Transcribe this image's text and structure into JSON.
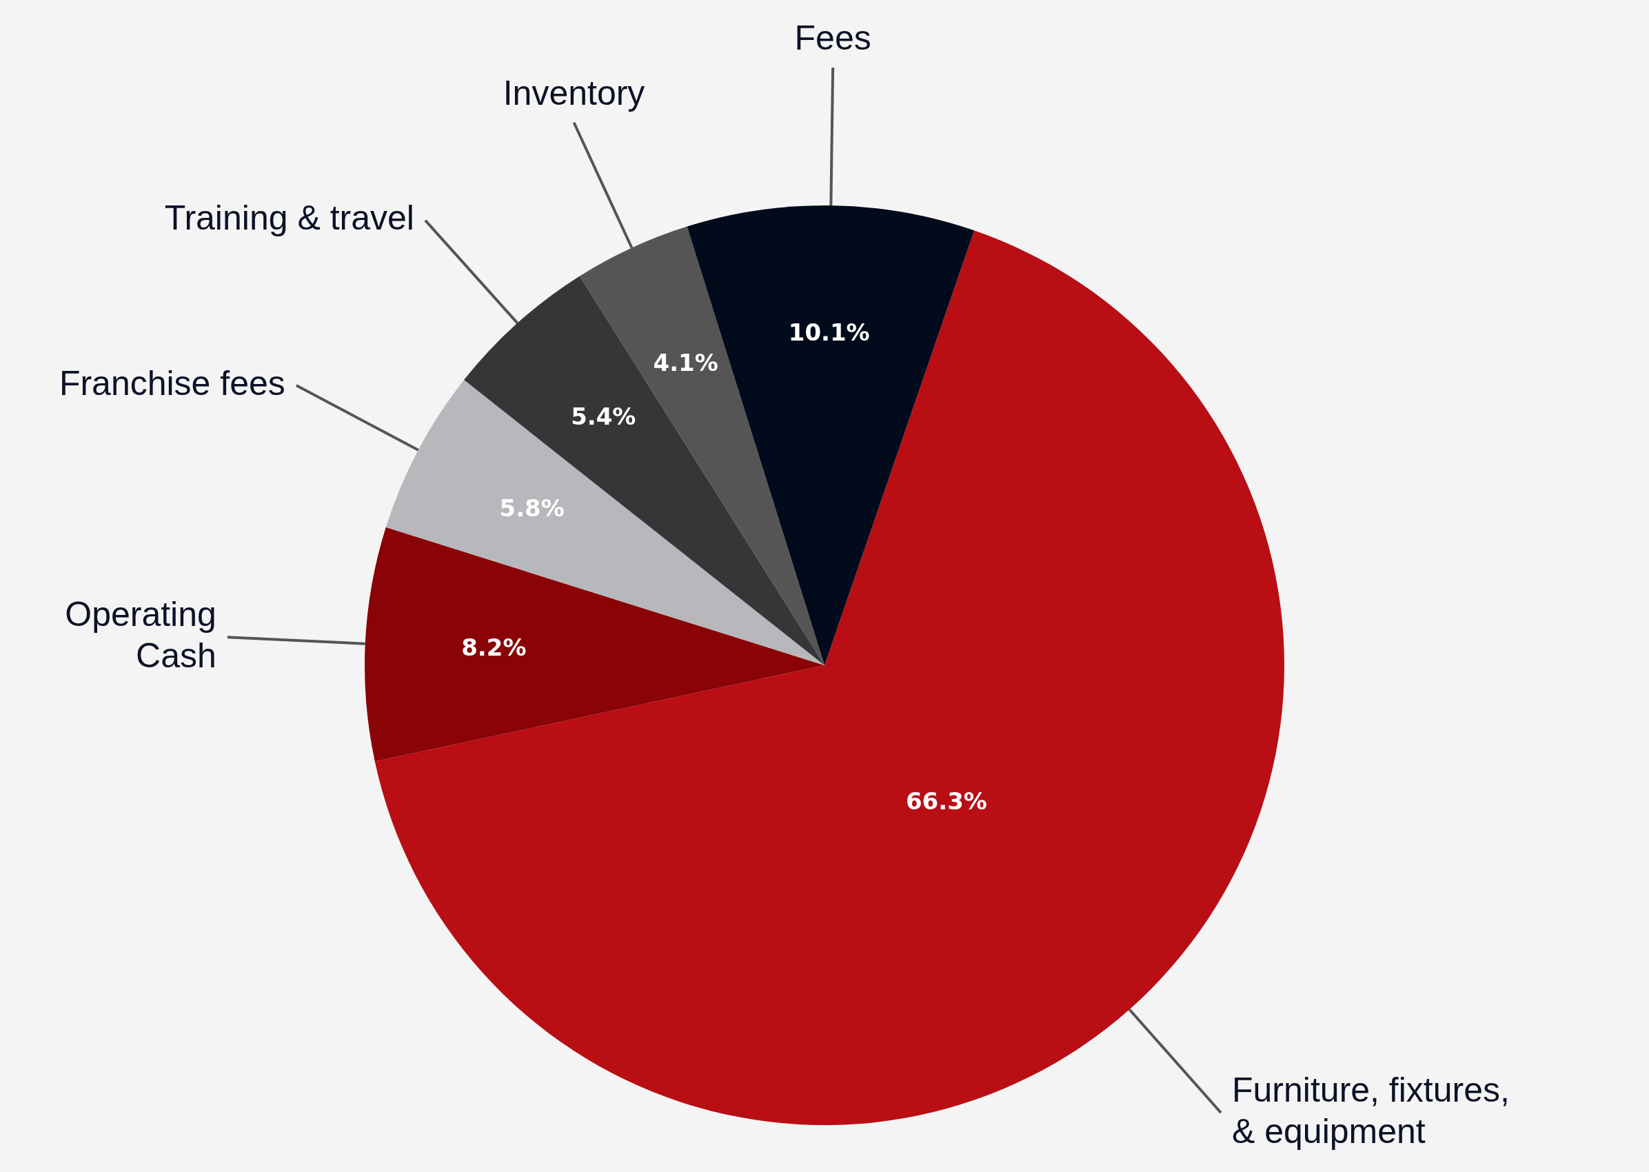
{
  "chart_data": {
    "type": "pie",
    "categories": [
      "Furniture, fixtures,\n& equipment",
      "Operating\nCash",
      "Franchise fees",
      "Training & travel",
      "Inventory",
      "Fees"
    ],
    "values": [
      66.3,
      8.2,
      5.8,
      5.4,
      4.1,
      10.1
    ],
    "colors": [
      "#b80e14",
      "#8a0306",
      "#b7b8bb",
      "#363638",
      "#555555",
      "#020b1b"
    ],
    "value_labels": [
      "66.3%",
      "8.2%",
      "5.8%",
      "5.4%",
      "4.1%",
      "10.1%"
    ],
    "legend": false
  }
}
